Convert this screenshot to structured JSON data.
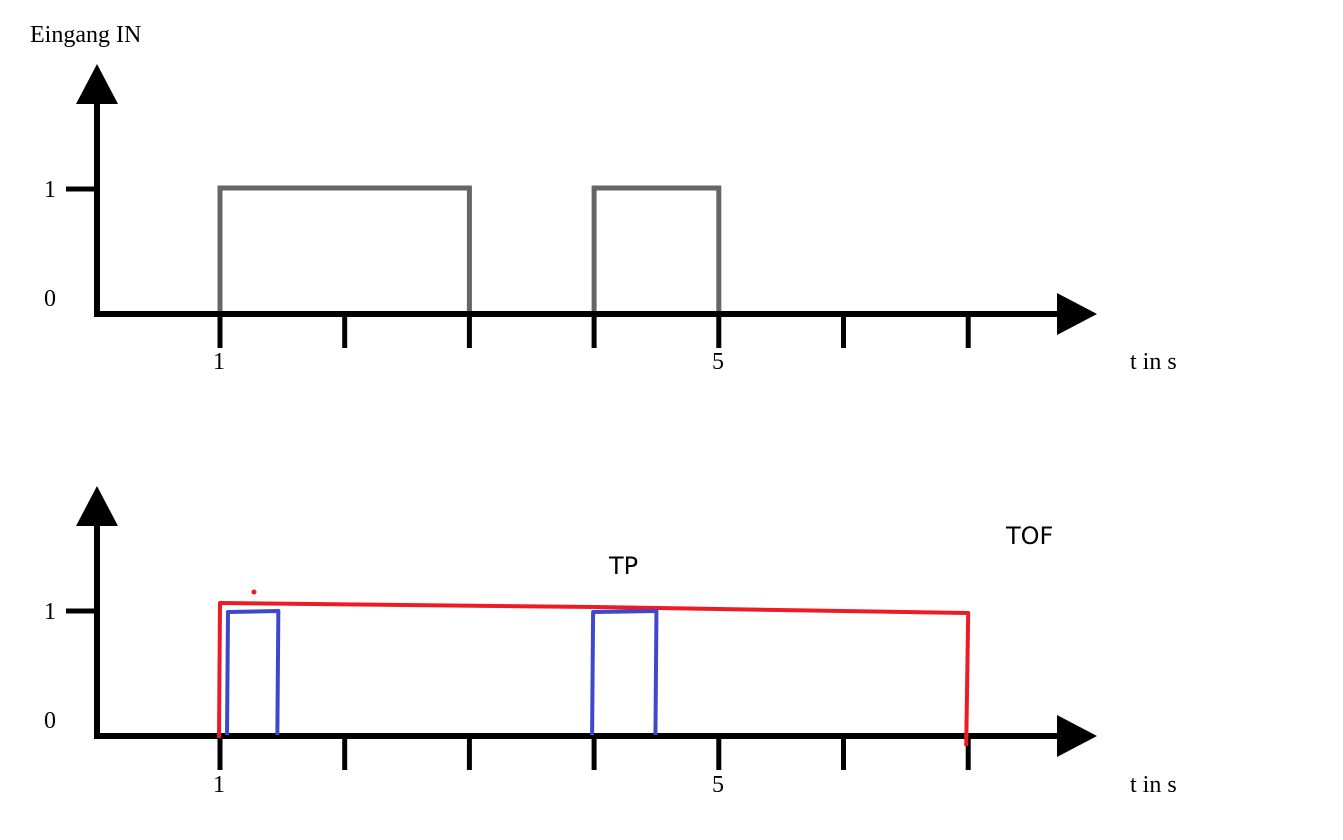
{
  "top_chart": {
    "ylabel": "Eingang IN",
    "xlabel": "t in s",
    "y_ticks": [
      "0",
      "1"
    ],
    "x_tick_labels": {
      "1": "1",
      "5": "5"
    },
    "x_ticks": [
      1,
      2,
      3,
      4,
      5,
      6,
      7
    ],
    "signal_color": "#666666",
    "signal": [
      [
        1,
        1
      ],
      [
        3,
        0
      ],
      [
        4,
        1
      ],
      [
        5,
        0
      ],
      [
        6,
        0
      ]
    ]
  },
  "bottom_chart": {
    "xlabel": "t in s",
    "y_ticks": [
      "0",
      "1"
    ],
    "x_tick_labels": {
      "1": "1",
      "5": "5"
    },
    "x_ticks": [
      1,
      2,
      3,
      4,
      5,
      6,
      7
    ],
    "tp": {
      "label": "TP",
      "color": "#3f48cc",
      "pulses": [
        [
          1,
          1.5
        ],
        [
          4,
          4.5
        ]
      ]
    },
    "tof": {
      "label": "TOF",
      "color": "#ed1c24",
      "on": 1,
      "off": 7
    }
  }
}
